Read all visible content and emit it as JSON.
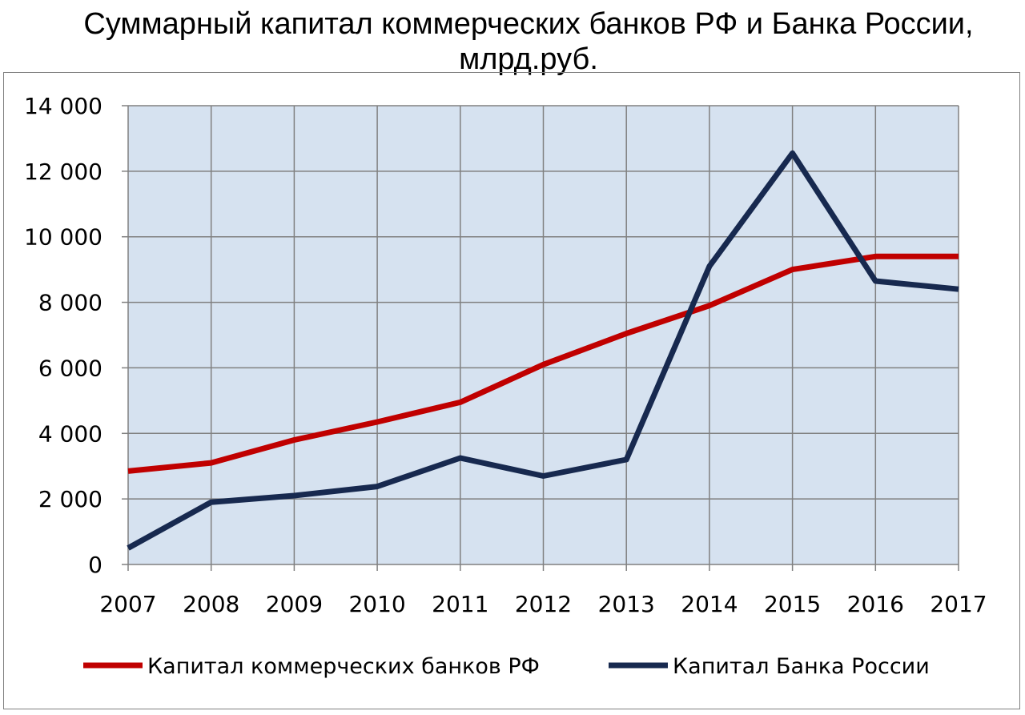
{
  "chart_data": {
    "type": "line",
    "title": "Суммарный капитал коммерческих банков РФ и Банка России,",
    "title_line2": "млрд.руб.",
    "xlabel": "",
    "ylabel": "",
    "x": [
      "2007",
      "2008",
      "2009",
      "2010",
      "2011",
      "2012",
      "2013",
      "2014",
      "2015",
      "2016",
      "2017"
    ],
    "ylim": [
      0,
      14000
    ],
    "yticks": [
      0,
      2000,
      4000,
      6000,
      8000,
      10000,
      12000,
      14000
    ],
    "ytick_labels": [
      "0",
      "2 000",
      "4 000",
      "6 000",
      "8 000",
      "10 000",
      "12 000",
      "14 000"
    ],
    "grid": true,
    "legend": "bottom",
    "series": [
      {
        "name": "Капитал коммерческих банков РФ",
        "color": "#c00000",
        "values": [
          2850,
          3100,
          3800,
          4350,
          4950,
          6100,
          7050,
          7900,
          9000,
          9400,
          9400
        ]
      },
      {
        "name": "Капитал Банка России",
        "color": "#17294f",
        "values": [
          500,
          1900,
          2100,
          2380,
          3250,
          2700,
          3200,
          9100,
          12550,
          8650,
          8400
        ]
      }
    ],
    "plot_background": "#d6e2f0",
    "grid_color": "#808080"
  }
}
